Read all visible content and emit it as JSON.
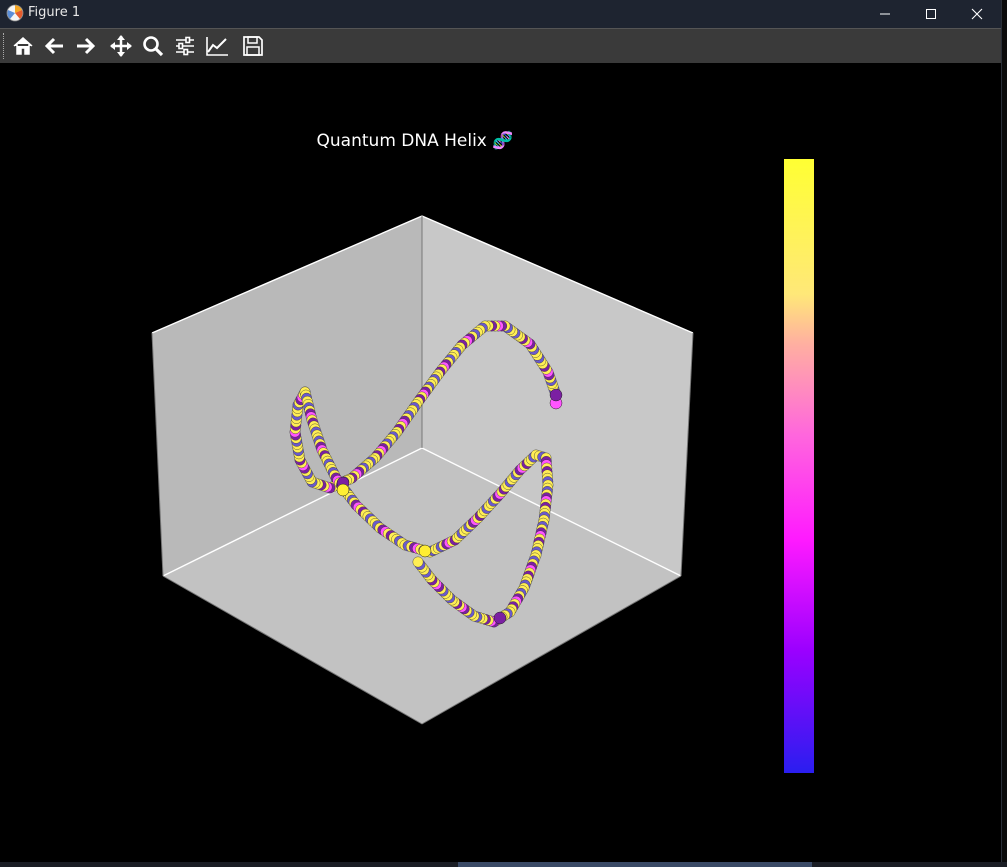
{
  "window": {
    "title": "Figure 1",
    "controls": [
      "minimize-icon",
      "maximize-icon",
      "close-icon"
    ]
  },
  "toolbar": {
    "tools": [
      "home-icon",
      "back-icon",
      "forward-icon",
      "pan-icon",
      "zoom-icon",
      "configure-subplots-icon",
      "edit-axis-icon",
      "save-icon"
    ]
  },
  "figure": {
    "title": "Quantum DNA Helix 🧬",
    "background": "#000000",
    "pane_color": "#c4c4c4"
  },
  "chart_data": {
    "type": "scatter",
    "projection": "3d",
    "title": "Quantum DNA Helix 🧬",
    "colormap": "spring-plasma",
    "colorbar": {
      "top_color": "#ffff33",
      "bottom_color": "#2a1ef0",
      "tick_labels": []
    },
    "series": [
      {
        "marker_colors": [
          "#ffee55",
          "#7b1fa2",
          "#6a5acd",
          "#ff55ff"
        ]
      }
    ],
    "axis_ticks": "hidden",
    "grid": false
  }
}
